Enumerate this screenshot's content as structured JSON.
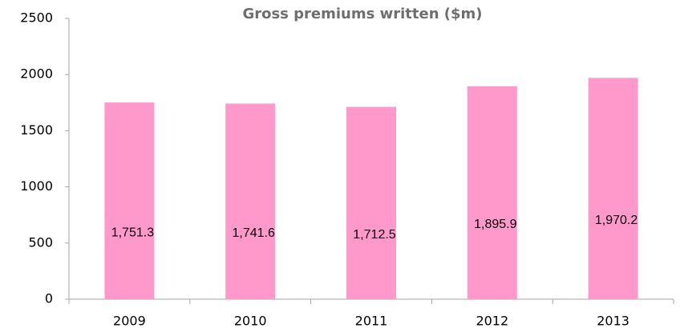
{
  "chart_data": {
    "type": "bar",
    "title": "Gross premiums written ($m)",
    "categories": [
      "2009",
      "2010",
      "2011",
      "2012",
      "2013"
    ],
    "values": [
      1751.3,
      1741.6,
      1712.5,
      1895.9,
      1970.2
    ],
    "value_labels": [
      "1,751.3",
      "1,741.6",
      "1,712.5",
      "1,895.9",
      "1,970.2"
    ],
    "color": "#ff99cc",
    "ylim": [
      0,
      2500
    ],
    "yticks": [
      0,
      500,
      1000,
      1500,
      2000,
      2500
    ],
    "grid": false
  }
}
